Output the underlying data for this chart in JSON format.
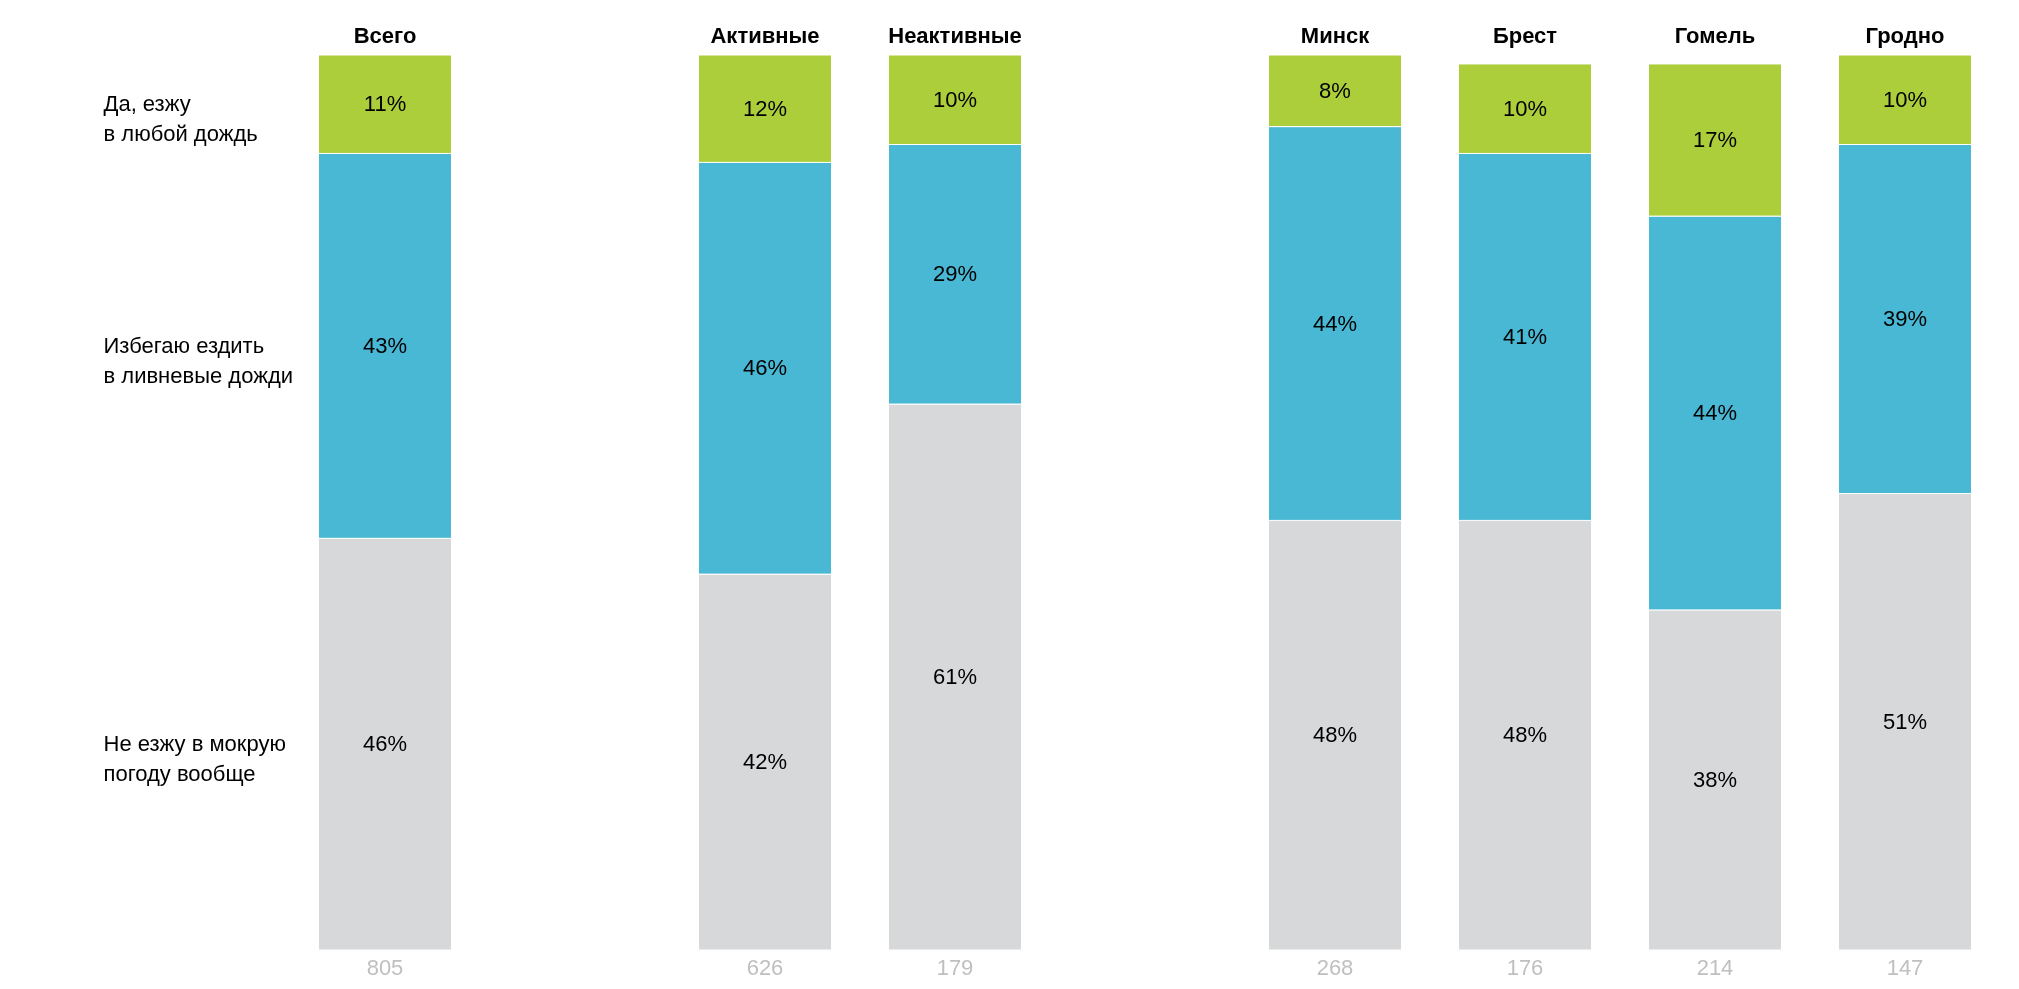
{
  "chart_data": {
    "type": "bar",
    "stacked": true,
    "tick_labels": "x",
    "categories": [
      "Всего",
      null,
      "Активные",
      "Неактивные",
      null,
      "Минск",
      "Брест",
      "Гомель",
      "Гродно"
    ],
    "series": [
      {
        "name": "Не езжу в мокрую\nпогоду вообще",
        "color": "#d7d8da",
        "values": [
          46,
          null,
          42,
          61,
          null,
          48,
          48,
          38,
          51
        ],
        "value_labels": [
          "46%",
          null,
          "42%",
          "61%",
          null,
          "48%",
          "48%",
          "38%",
          "51%"
        ]
      },
      {
        "name": "Избегаю ездить\nв ливневые дожди",
        "color": "#48b8d4",
        "values": [
          43,
          null,
          46,
          29,
          null,
          44,
          41,
          44,
          39
        ],
        "value_labels": [
          "43%",
          null,
          "46%",
          "29%",
          null,
          "44%",
          "41%",
          "44%",
          "39%"
        ]
      },
      {
        "name": "Да, езжу\nв любой дождь",
        "color": "#acce3a",
        "values": [
          11,
          null,
          12,
          10,
          null,
          8,
          10,
          17,
          10
        ],
        "value_labels": [
          "11%",
          null,
          "12%",
          "10%",
          null,
          "8%",
          "10%",
          "17%",
          "10%"
        ]
      }
    ],
    "annotations": [
      "805",
      "626",
      "179",
      "268",
      "176",
      "214",
      "147"
    ]
  }
}
